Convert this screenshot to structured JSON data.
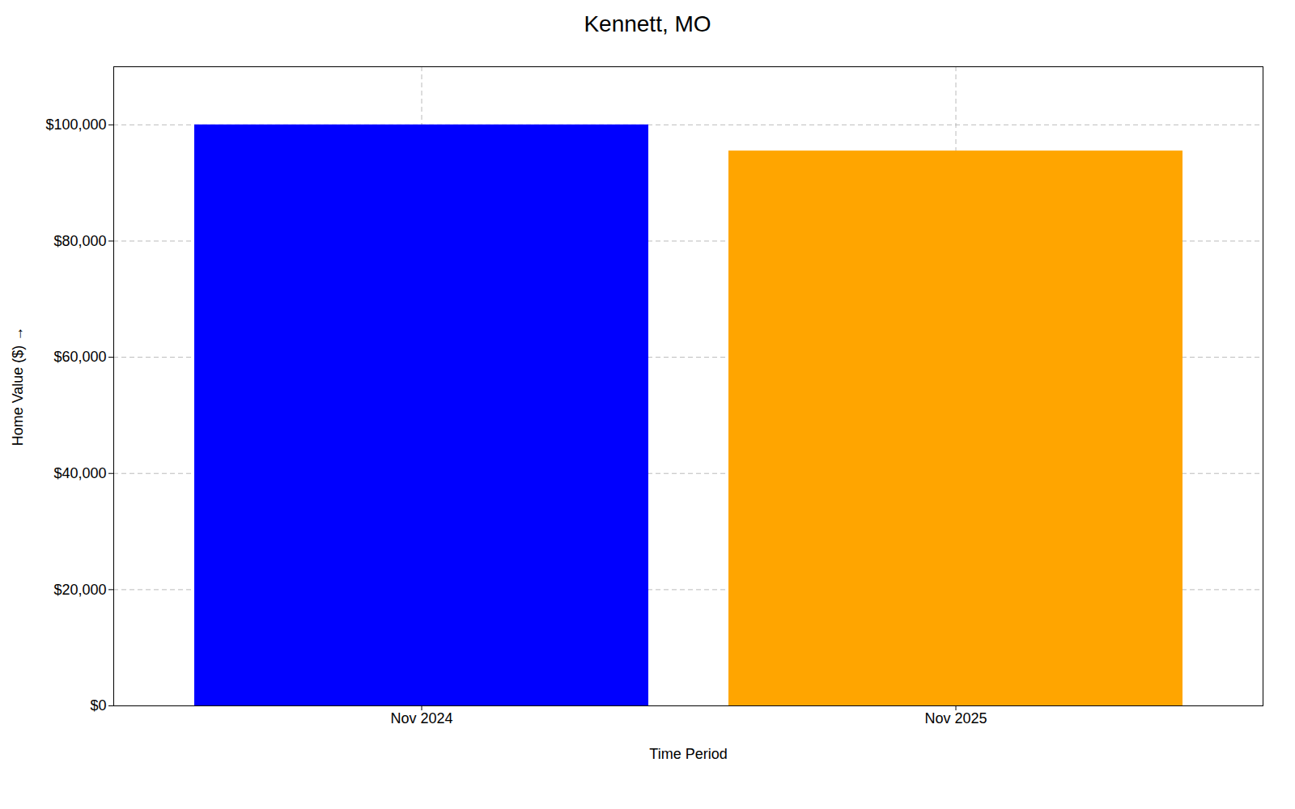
{
  "chart_data": {
    "type": "bar",
    "title": "Kennett, MO",
    "xlabel": "Time Period",
    "ylabel": "Home Value ($)",
    "categories": [
      "Nov 2024",
      "Nov 2025"
    ],
    "values": [
      100000,
      95500
    ],
    "colors": [
      "#0000ff",
      "#ffa500"
    ],
    "ylim": [
      0,
      110000
    ],
    "yticks": [
      {
        "value": 0,
        "label": "$0"
      },
      {
        "value": 20000,
        "label": "$20,000"
      },
      {
        "value": 40000,
        "label": "$40,000"
      },
      {
        "value": 60000,
        "label": "$60,000"
      },
      {
        "value": 80000,
        "label": "$80,000"
      },
      {
        "value": 100000,
        "label": "$100,000"
      }
    ],
    "grid": true
  }
}
